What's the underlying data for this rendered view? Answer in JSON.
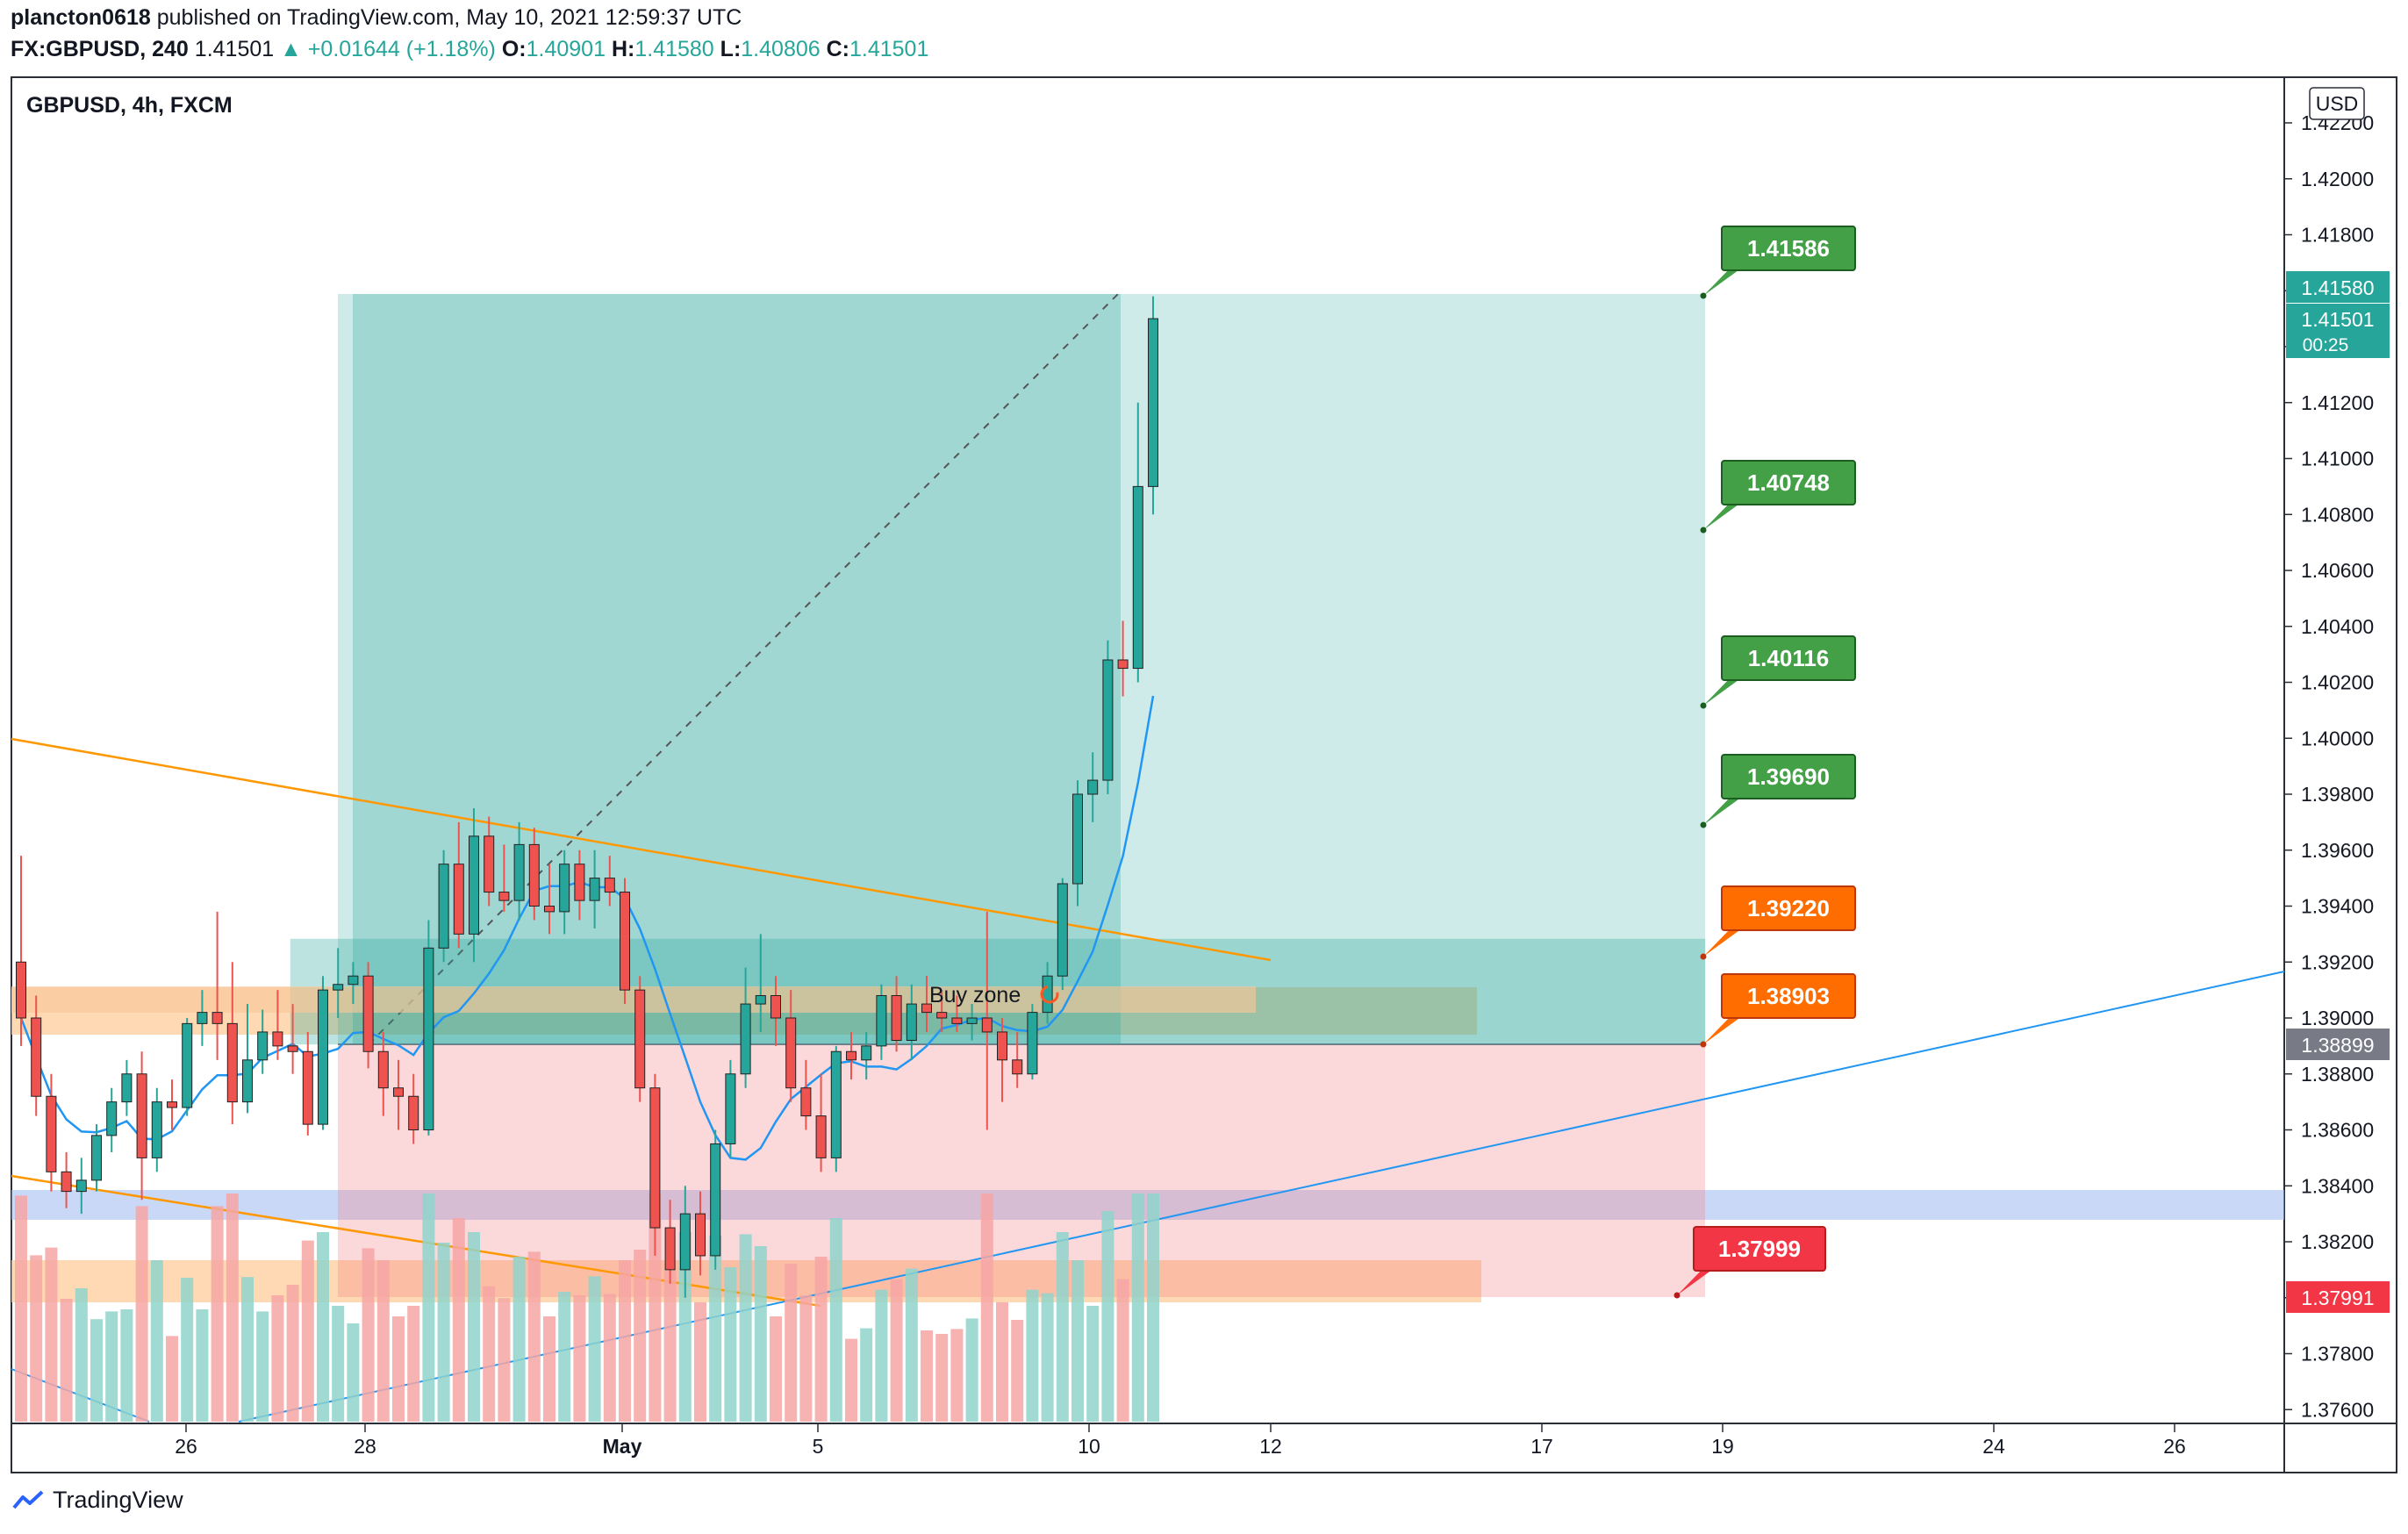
{
  "header": {
    "author": "plancton0618",
    "published_text": "published on TradingView.com, May 10, 2021 12:59:37 UTC",
    "symbol": "FX:GBPUSD, 240",
    "last": "1.41501",
    "change": "+0.01644 (+1.18%)",
    "open_label": "O:",
    "open": "1.40901",
    "high_label": "H:",
    "high": "1.41580",
    "low_label": "L:",
    "low": "1.40806",
    "close_label": "C:",
    "close": "1.41501"
  },
  "legend": {
    "title": "GBPUSD, 4h, FXCM"
  },
  "currency_button": "USD",
  "footer": {
    "brand": "TradingView"
  },
  "colors": {
    "up": "#26a69a",
    "down": "#ef5350",
    "target": "#43a047",
    "entry": "#ff6d00",
    "stop": "#f23645",
    "ma": "#2196f3",
    "trend": "#ff9800"
  },
  "chart_data": {
    "type": "candlestick",
    "symbol": "GBPUSD",
    "timeframe": "4h",
    "ylim": [
      1.375,
      1.4235
    ],
    "y_ticks": [
      "1.42200",
      "1.42000",
      "1.41800",
      "1.41600",
      "1.41400",
      "1.41200",
      "1.41000",
      "1.40800",
      "1.40600",
      "1.40400",
      "1.40200",
      "1.40000",
      "1.39800",
      "1.39600",
      "1.39400",
      "1.39200",
      "1.39000",
      "1.38800",
      "1.38600",
      "1.38400",
      "1.38200",
      "1.38000",
      "1.37800",
      "1.37600"
    ],
    "x_ticks": [
      "26",
      "28",
      "May",
      "5",
      "10",
      "12",
      "17",
      "19",
      "24",
      "26"
    ],
    "price_labels": [
      {
        "text": "1.41580",
        "role": "high"
      },
      {
        "text": "1.41501",
        "role": "last"
      },
      {
        "text": "00:25",
        "role": "countdown"
      },
      {
        "text": "1.38899",
        "role": "entry-level"
      },
      {
        "text": "1.37991",
        "role": "stop-level"
      }
    ],
    "position_tool": {
      "targets": [
        "1.41586",
        "1.40748",
        "1.40116",
        "1.39690"
      ],
      "entries": [
        "1.39220",
        "1.38903"
      ],
      "stop": "1.37999"
    },
    "annotation": "Buy zone",
    "candles": [
      {
        "o": 1.392,
        "h": 1.3958,
        "l": 1.389,
        "c": 1.39
      },
      {
        "o": 1.39,
        "h": 1.3908,
        "l": 1.3865,
        "c": 1.3872
      },
      {
        "o": 1.3872,
        "h": 1.388,
        "l": 1.3838,
        "c": 1.3845
      },
      {
        "o": 1.3845,
        "h": 1.3852,
        "l": 1.3832,
        "c": 1.3838
      },
      {
        "o": 1.3838,
        "h": 1.385,
        "l": 1.383,
        "c": 1.3842
      },
      {
        "o": 1.3842,
        "h": 1.3862,
        "l": 1.3838,
        "c": 1.3858
      },
      {
        "o": 1.3858,
        "h": 1.3875,
        "l": 1.3852,
        "c": 1.387
      },
      {
        "o": 1.387,
        "h": 1.3885,
        "l": 1.3865,
        "c": 1.388
      },
      {
        "o": 1.388,
        "h": 1.3888,
        "l": 1.3835,
        "c": 1.385
      },
      {
        "o": 1.385,
        "h": 1.3875,
        "l": 1.3845,
        "c": 1.387
      },
      {
        "o": 1.387,
        "h": 1.3878,
        "l": 1.386,
        "c": 1.3868
      },
      {
        "o": 1.3868,
        "h": 1.39,
        "l": 1.3865,
        "c": 1.3898
      },
      {
        "o": 1.3898,
        "h": 1.391,
        "l": 1.389,
        "c": 1.3902
      },
      {
        "o": 1.3902,
        "h": 1.3938,
        "l": 1.3885,
        "c": 1.3898
      },
      {
        "o": 1.3898,
        "h": 1.392,
        "l": 1.3862,
        "c": 1.387
      },
      {
        "o": 1.387,
        "h": 1.3905,
        "l": 1.3866,
        "c": 1.3885
      },
      {
        "o": 1.3885,
        "h": 1.3903,
        "l": 1.388,
        "c": 1.3895
      },
      {
        "o": 1.3895,
        "h": 1.391,
        "l": 1.3885,
        "c": 1.389
      },
      {
        "o": 1.389,
        "h": 1.3905,
        "l": 1.388,
        "c": 1.3888
      },
      {
        "o": 1.3888,
        "h": 1.3895,
        "l": 1.3858,
        "c": 1.3862
      },
      {
        "o": 1.3862,
        "h": 1.3915,
        "l": 1.386,
        "c": 1.391
      },
      {
        "o": 1.391,
        "h": 1.3925,
        "l": 1.39,
        "c": 1.3912
      },
      {
        "o": 1.3912,
        "h": 1.392,
        "l": 1.3905,
        "c": 1.3915
      },
      {
        "o": 1.3915,
        "h": 1.392,
        "l": 1.3882,
        "c": 1.3888
      },
      {
        "o": 1.3888,
        "h": 1.3895,
        "l": 1.3865,
        "c": 1.3875
      },
      {
        "o": 1.3875,
        "h": 1.3885,
        "l": 1.386,
        "c": 1.3872
      },
      {
        "o": 1.3872,
        "h": 1.388,
        "l": 1.3855,
        "c": 1.386
      },
      {
        "o": 1.386,
        "h": 1.3935,
        "l": 1.3858,
        "c": 1.3925
      },
      {
        "o": 1.3925,
        "h": 1.396,
        "l": 1.392,
        "c": 1.3955
      },
      {
        "o": 1.3955,
        "h": 1.397,
        "l": 1.3925,
        "c": 1.393
      },
      {
        "o": 1.393,
        "h": 1.3975,
        "l": 1.392,
        "c": 1.3965
      },
      {
        "o": 1.3965,
        "h": 1.3972,
        "l": 1.394,
        "c": 1.3945
      },
      {
        "o": 1.3945,
        "h": 1.3962,
        "l": 1.3938,
        "c": 1.3942
      },
      {
        "o": 1.3942,
        "h": 1.397,
        "l": 1.3935,
        "c": 1.3962
      },
      {
        "o": 1.3962,
        "h": 1.3968,
        "l": 1.3935,
        "c": 1.394
      },
      {
        "o": 1.394,
        "h": 1.3955,
        "l": 1.393,
        "c": 1.3938
      },
      {
        "o": 1.3938,
        "h": 1.396,
        "l": 1.393,
        "c": 1.3955
      },
      {
        "o": 1.3955,
        "h": 1.396,
        "l": 1.3935,
        "c": 1.3942
      },
      {
        "o": 1.3942,
        "h": 1.396,
        "l": 1.3932,
        "c": 1.395
      },
      {
        "o": 1.395,
        "h": 1.3958,
        "l": 1.394,
        "c": 1.3945
      },
      {
        "o": 1.3945,
        "h": 1.395,
        "l": 1.3905,
        "c": 1.391
      },
      {
        "o": 1.391,
        "h": 1.3915,
        "l": 1.387,
        "c": 1.3875
      },
      {
        "o": 1.3875,
        "h": 1.388,
        "l": 1.3815,
        "c": 1.3825
      },
      {
        "o": 1.3825,
        "h": 1.3835,
        "l": 1.3805,
        "c": 1.381
      },
      {
        "o": 1.381,
        "h": 1.384,
        "l": 1.38,
        "c": 1.383
      },
      {
        "o": 1.383,
        "h": 1.3838,
        "l": 1.3808,
        "c": 1.3815
      },
      {
        "o": 1.3815,
        "h": 1.386,
        "l": 1.381,
        "c": 1.3855
      },
      {
        "o": 1.3855,
        "h": 1.3885,
        "l": 1.385,
        "c": 1.388
      },
      {
        "o": 1.388,
        "h": 1.3918,
        "l": 1.3875,
        "c": 1.3905
      },
      {
        "o": 1.3905,
        "h": 1.393,
        "l": 1.3895,
        "c": 1.3908
      },
      {
        "o": 1.3908,
        "h": 1.3915,
        "l": 1.389,
        "c": 1.39
      },
      {
        "o": 1.39,
        "h": 1.391,
        "l": 1.387,
        "c": 1.3875
      },
      {
        "o": 1.3875,
        "h": 1.3885,
        "l": 1.386,
        "c": 1.3865
      },
      {
        "o": 1.3865,
        "h": 1.388,
        "l": 1.3845,
        "c": 1.385
      },
      {
        "o": 1.385,
        "h": 1.389,
        "l": 1.3845,
        "c": 1.3888
      },
      {
        "o": 1.3888,
        "h": 1.3895,
        "l": 1.3878,
        "c": 1.3885
      },
      {
        "o": 1.3885,
        "h": 1.3895,
        "l": 1.3878,
        "c": 1.389
      },
      {
        "o": 1.389,
        "h": 1.3912,
        "l": 1.3885,
        "c": 1.3908
      },
      {
        "o": 1.3908,
        "h": 1.3915,
        "l": 1.3888,
        "c": 1.3892
      },
      {
        "o": 1.3892,
        "h": 1.3912,
        "l": 1.3885,
        "c": 1.3905
      },
      {
        "o": 1.3905,
        "h": 1.3915,
        "l": 1.3895,
        "c": 1.3902
      },
      {
        "o": 1.3902,
        "h": 1.391,
        "l": 1.3895,
        "c": 1.39
      },
      {
        "o": 1.39,
        "h": 1.3908,
        "l": 1.3895,
        "c": 1.3898
      },
      {
        "o": 1.3898,
        "h": 1.3905,
        "l": 1.3892,
        "c": 1.39
      },
      {
        "o": 1.39,
        "h": 1.3938,
        "l": 1.386,
        "c": 1.3895
      },
      {
        "o": 1.3895,
        "h": 1.39,
        "l": 1.387,
        "c": 1.3885
      },
      {
        "o": 1.3885,
        "h": 1.3895,
        "l": 1.3875,
        "c": 1.388
      },
      {
        "o": 1.388,
        "h": 1.3905,
        "l": 1.3878,
        "c": 1.3902
      },
      {
        "o": 1.3902,
        "h": 1.392,
        "l": 1.3898,
        "c": 1.3915
      },
      {
        "o": 1.3915,
        "h": 1.395,
        "l": 1.391,
        "c": 1.3948
      },
      {
        "o": 1.3948,
        "h": 1.3985,
        "l": 1.394,
        "c": 1.398
      },
      {
        "o": 1.398,
        "h": 1.3995,
        "l": 1.397,
        "c": 1.3985
      },
      {
        "o": 1.3985,
        "h": 1.4035,
        "l": 1.398,
        "c": 1.4028
      },
      {
        "o": 1.4028,
        "h": 1.4042,
        "l": 1.4015,
        "c": 1.4025
      },
      {
        "o": 1.4025,
        "h": 1.412,
        "l": 1.402,
        "c": 1.409
      },
      {
        "o": 1.409,
        "h": 1.4158,
        "l": 1.408,
        "c": 1.415
      }
    ]
  }
}
